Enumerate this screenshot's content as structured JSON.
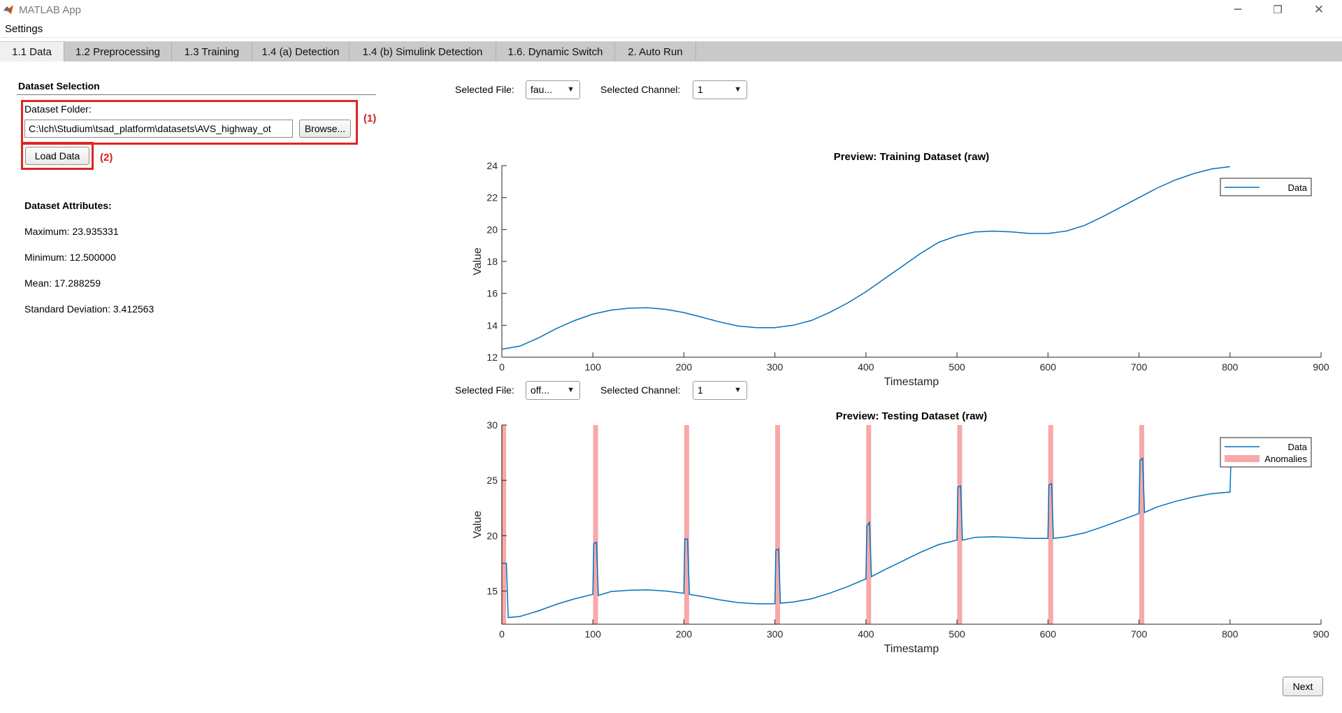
{
  "window": {
    "title": "MATLAB App",
    "minimize": "─",
    "restore": "❐",
    "close": "✕"
  },
  "menu": {
    "settings": "Settings"
  },
  "tabs": [
    {
      "label": "1.1 Data"
    },
    {
      "label": "1.2 Preprocessing"
    },
    {
      "label": "1.3 Training"
    },
    {
      "label": "1.4 (a) Detection"
    },
    {
      "label": "1.4 (b) Simulink Detection"
    },
    {
      "label": "1.6. Dynamic Switch"
    },
    {
      "label": "2. Auto Run"
    }
  ],
  "dataset_selection": {
    "heading": "Dataset Selection",
    "folder_label": "Dataset Folder:",
    "folder_value": "C:\\Ich\\Studium\\tsad_platform\\datasets\\AVS_highway_ot",
    "browse_label": "Browse...",
    "load_label": "Load Data",
    "annotation_1": "(1)",
    "annotation_2": "(2)"
  },
  "attributes": {
    "heading": "Dataset Attributes:",
    "maximum": "Maximum: 23.935331",
    "minimum": "Minimum: 12.500000",
    "mean": "Mean: 17.288259",
    "std": "Standard Deviation: 3.412563"
  },
  "training_controls": {
    "file_label": "Selected File:",
    "file_value": "fau...",
    "channel_label": "Selected Channel:",
    "channel_value": "1"
  },
  "testing_controls": {
    "file_label": "Selected File:",
    "file_value": "off...",
    "channel_label": "Selected Channel:",
    "channel_value": "1"
  },
  "next_label": "Next",
  "colors": {
    "line": "#0072BD",
    "anomaly": "#f7a8a8",
    "annotation": "#e02424"
  },
  "chart_data": [
    {
      "type": "line",
      "title": "Preview: Training Dataset (raw)",
      "xlabel": "Timestamp",
      "ylabel": "Value",
      "xlim": [
        0,
        900
      ],
      "ylim": [
        12,
        24
      ],
      "xticks": [
        0,
        100,
        200,
        300,
        400,
        500,
        600,
        700,
        800,
        900
      ],
      "yticks": [
        12,
        14,
        16,
        18,
        20,
        22,
        24
      ],
      "legend": "top-right",
      "series": [
        {
          "name": "Data",
          "x": [
            0,
            20,
            40,
            60,
            80,
            100,
            120,
            140,
            160,
            180,
            200,
            220,
            240,
            260,
            280,
            300,
            320,
            340,
            360,
            380,
            400,
            420,
            440,
            460,
            480,
            500,
            520,
            540,
            560,
            580,
            600,
            620,
            640,
            660,
            680,
            700,
            720,
            740,
            760,
            780,
            800
          ],
          "y": [
            12.5,
            12.7,
            13.2,
            13.8,
            14.3,
            14.7,
            14.95,
            15.07,
            15.1,
            15.0,
            14.8,
            14.5,
            14.2,
            13.95,
            13.85,
            13.85,
            14.0,
            14.3,
            14.8,
            15.4,
            16.1,
            16.9,
            17.7,
            18.5,
            19.2,
            19.6,
            19.85,
            19.9,
            19.85,
            19.75,
            19.75,
            19.9,
            20.25,
            20.8,
            21.4,
            22.0,
            22.6,
            23.1,
            23.5,
            23.8,
            23.94
          ]
        }
      ]
    },
    {
      "type": "line",
      "title": "Preview: Testing Dataset (raw)",
      "xlabel": "Timestamp",
      "ylabel": "Value",
      "xlim": [
        0,
        900
      ],
      "ylim": [
        12,
        30
      ],
      "xticks": [
        0,
        100,
        200,
        300,
        400,
        500,
        600,
        700,
        800,
        900
      ],
      "yticks": [
        15,
        20,
        25,
        30
      ],
      "legend": "top-right",
      "series": [
        {
          "name": "Data",
          "x": [
            0,
            5,
            7,
            20,
            40,
            60,
            80,
            100,
            101,
            104,
            106,
            120,
            140,
            160,
            180,
            200,
            201,
            204,
            206,
            220,
            240,
            260,
            280,
            300,
            301,
            304,
            306,
            320,
            340,
            360,
            380,
            400,
            401,
            404,
            406,
            420,
            440,
            460,
            480,
            500,
            501,
            504,
            506,
            520,
            540,
            560,
            580,
            600,
            601,
            604,
            606,
            620,
            640,
            660,
            680,
            700,
            701,
            704,
            706,
            720,
            740,
            760,
            780,
            800,
            801
          ],
          "y": [
            17.5,
            17.5,
            12.6,
            12.7,
            13.2,
            13.8,
            14.3,
            14.7,
            19.3,
            19.4,
            14.6,
            14.95,
            15.07,
            15.1,
            15.0,
            14.8,
            19.7,
            19.7,
            14.7,
            14.5,
            14.2,
            13.95,
            13.85,
            13.85,
            18.7,
            18.8,
            13.9,
            14.0,
            14.3,
            14.8,
            15.4,
            16.1,
            20.9,
            21.2,
            16.3,
            16.9,
            17.7,
            18.5,
            19.2,
            19.6,
            24.4,
            24.5,
            19.6,
            19.85,
            19.9,
            19.85,
            19.75,
            19.75,
            24.6,
            24.7,
            19.75,
            19.9,
            20.25,
            20.8,
            21.4,
            22.0,
            26.8,
            27.0,
            22.1,
            22.6,
            23.1,
            23.5,
            23.8,
            23.94,
            26.8
          ]
        },
        {
          "name": "Anomalies",
          "x": [
            2,
            103,
            203,
            303,
            403,
            503,
            603,
            703
          ]
        }
      ]
    }
  ]
}
